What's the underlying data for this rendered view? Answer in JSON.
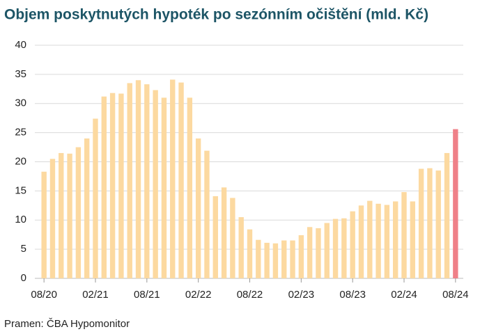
{
  "chart_data": {
    "type": "bar",
    "title": "Objem poskytnutých hypoték po sezónním očištění (mld. Kč)",
    "source": "Pramen: ČBA Hypomonitor",
    "categories": [
      "08/20",
      null,
      null,
      null,
      null,
      null,
      "02/21",
      null,
      null,
      null,
      null,
      null,
      "08/21",
      null,
      null,
      null,
      null,
      null,
      "02/22",
      null,
      null,
      null,
      null,
      null,
      "08/22",
      null,
      null,
      null,
      null,
      null,
      "02/23",
      null,
      null,
      null,
      null,
      null,
      "08/23",
      null,
      null,
      null,
      null,
      null,
      "02/24",
      null,
      null,
      null,
      null,
      null,
      "08/24"
    ],
    "values": [
      18.3,
      20.5,
      21.5,
      21.4,
      22.5,
      24.0,
      27.4,
      31.2,
      31.8,
      31.7,
      33.5,
      34.0,
      33.3,
      32.3,
      31.0,
      34.1,
      33.6,
      31.0,
      24.0,
      21.9,
      14.1,
      15.6,
      13.8,
      10.5,
      8.4,
      6.6,
      6.1,
      6.0,
      6.5,
      6.5,
      7.4,
      8.8,
      8.6,
      9.5,
      10.2,
      10.3,
      11.5,
      12.5,
      13.3,
      12.8,
      12.6,
      13.2,
      14.8,
      13.2,
      18.8,
      18.9,
      18.5,
      21.5,
      25.6
    ],
    "colors": [
      "#fcd9a0",
      "#fcd9a0",
      "#fcd9a0",
      "#fcd9a0",
      "#fcd9a0",
      "#fcd9a0",
      "#fcd9a0",
      "#fcd9a0",
      "#fcd9a0",
      "#fcd9a0",
      "#fcd9a0",
      "#fcd9a0",
      "#fcd9a0",
      "#fcd9a0",
      "#fcd9a0",
      "#fcd9a0",
      "#fcd9a0",
      "#fcd9a0",
      "#fcd9a0",
      "#fcd9a0",
      "#fcd9a0",
      "#fcd9a0",
      "#fcd9a0",
      "#fcd9a0",
      "#fcd9a0",
      "#fcd9a0",
      "#fcd9a0",
      "#fcd9a0",
      "#fcd9a0",
      "#fcd9a0",
      "#fcd9a0",
      "#fcd9a0",
      "#fcd9a0",
      "#fcd9a0",
      "#fcd9a0",
      "#fcd9a0",
      "#fcd9a0",
      "#fcd9a0",
      "#fcd9a0",
      "#fcd9a0",
      "#fcd9a0",
      "#fcd9a0",
      "#fcd9a0",
      "#fcd9a0",
      "#fcd9a0",
      "#fcd9a0",
      "#fcd9a0",
      "#fcd9a0",
      "#ef8088"
    ],
    "ylim": [
      0,
      40
    ],
    "yticks": [
      0,
      5,
      10,
      15,
      20,
      25,
      30,
      35,
      40
    ],
    "grid": true
  }
}
